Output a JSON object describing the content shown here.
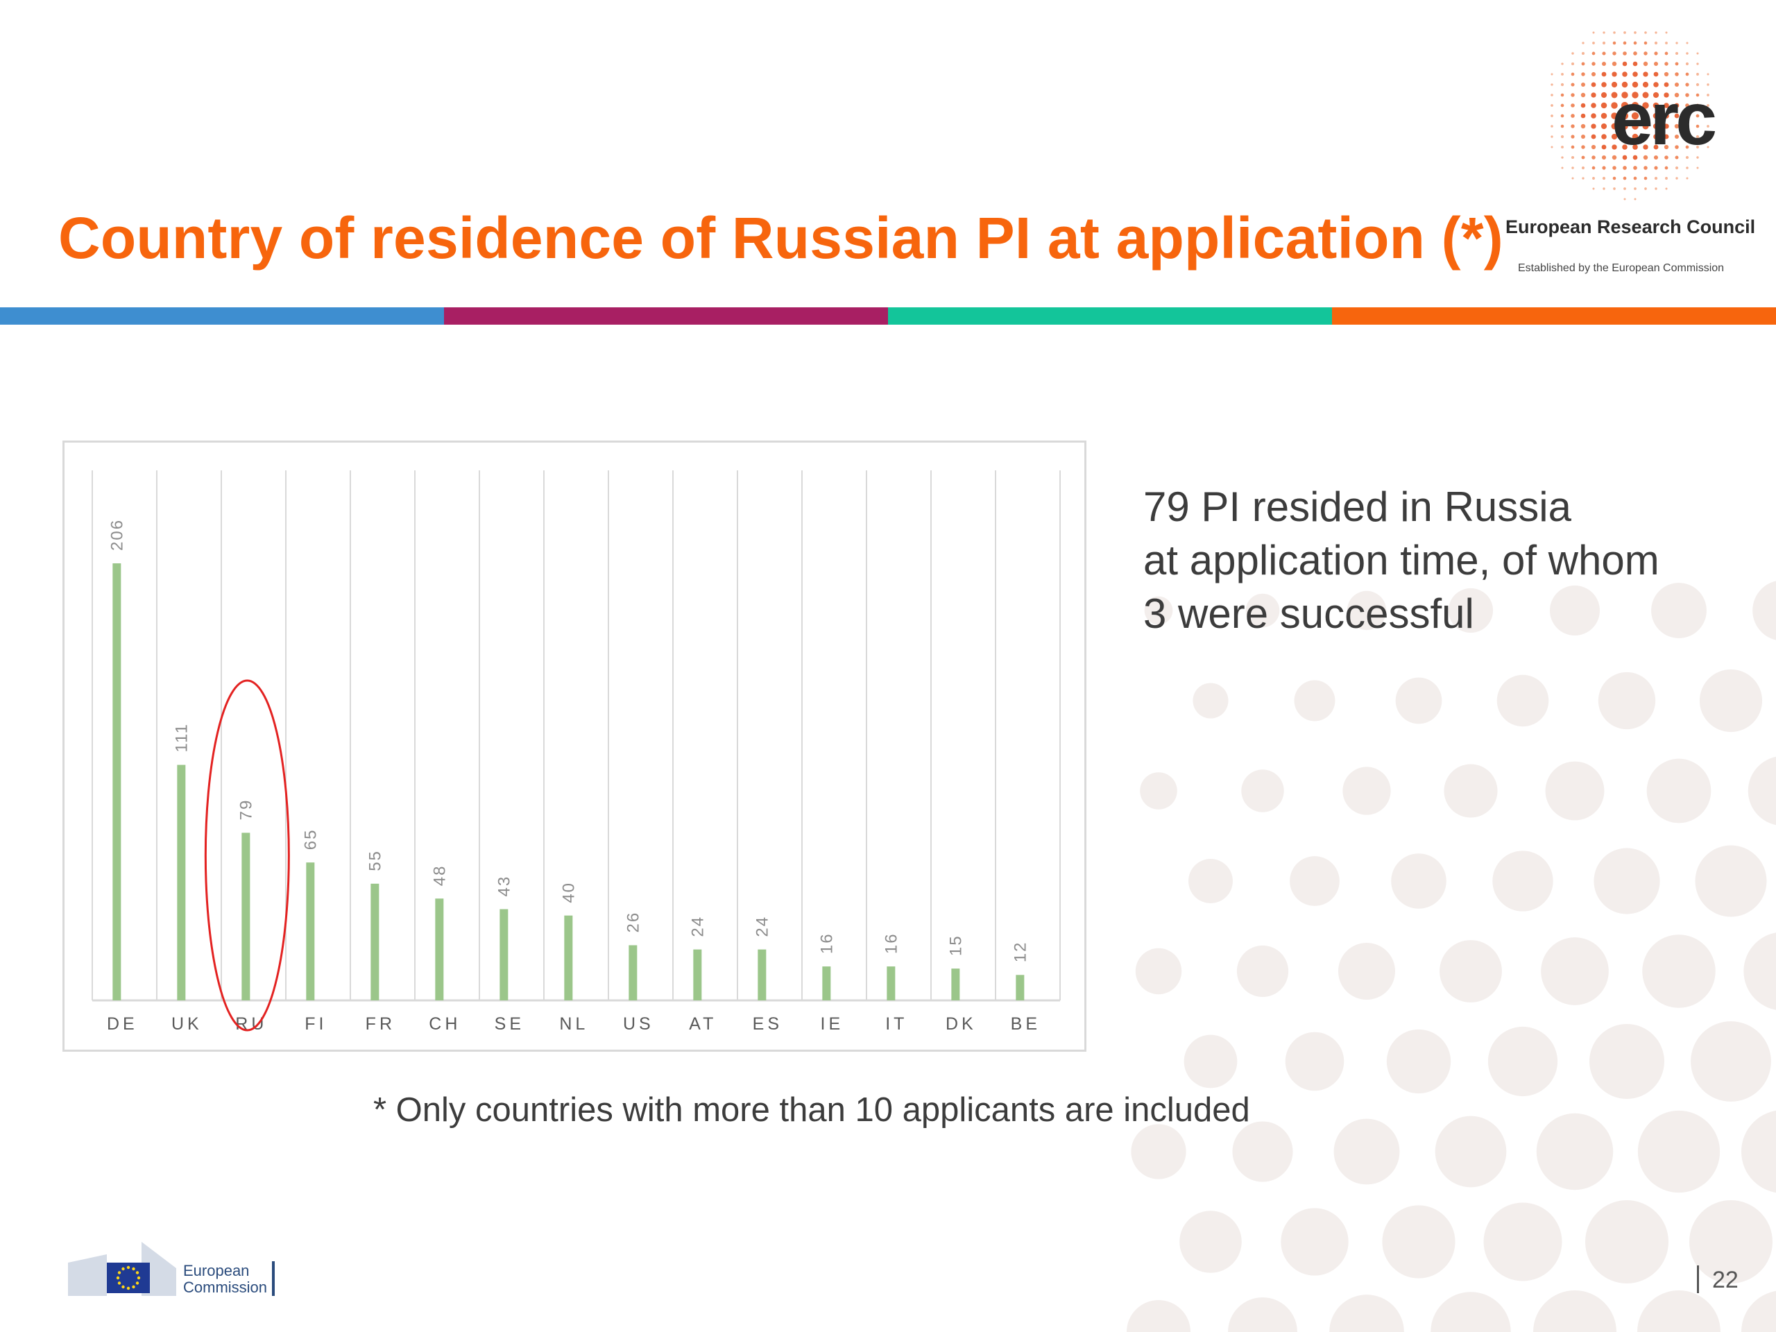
{
  "slide": {
    "title": "Country of residence of Russian PI at application (*)",
    "page_number": "22",
    "stripe_colors": [
      "#3e8ed0",
      "#a81f63",
      "#13c59a",
      "#f7650d"
    ],
    "accent_color": "#f7650d"
  },
  "erc_logo": {
    "wordmark": "erc",
    "name": "European Research Council",
    "tagline": "Established by the European Commission"
  },
  "ec_logo": {
    "line1": "European",
    "line2": "Commission"
  },
  "callout": {
    "line1": "79 PI resided in Russia",
    "line2": "at application time, of whom",
    "line3": "3 were successful"
  },
  "footnote": "* Only countries with more than 10 applicants are included",
  "chart_data": {
    "type": "bar",
    "categories": [
      "DE",
      "UK",
      "RU",
      "FI",
      "FR",
      "CH",
      "SE",
      "NL",
      "US",
      "AT",
      "ES",
      "IE",
      "IT",
      "DK",
      "BE"
    ],
    "values": [
      206,
      111,
      79,
      65,
      55,
      48,
      43,
      40,
      26,
      24,
      24,
      16,
      16,
      15,
      12
    ],
    "title": "",
    "xlabel": "",
    "ylabel": "",
    "ylim": [
      0,
      250
    ],
    "grid": "vertical",
    "legend": "none",
    "bar_color": "#9bc68a",
    "highlight_category": "RU",
    "highlight_color": "#e32221"
  }
}
